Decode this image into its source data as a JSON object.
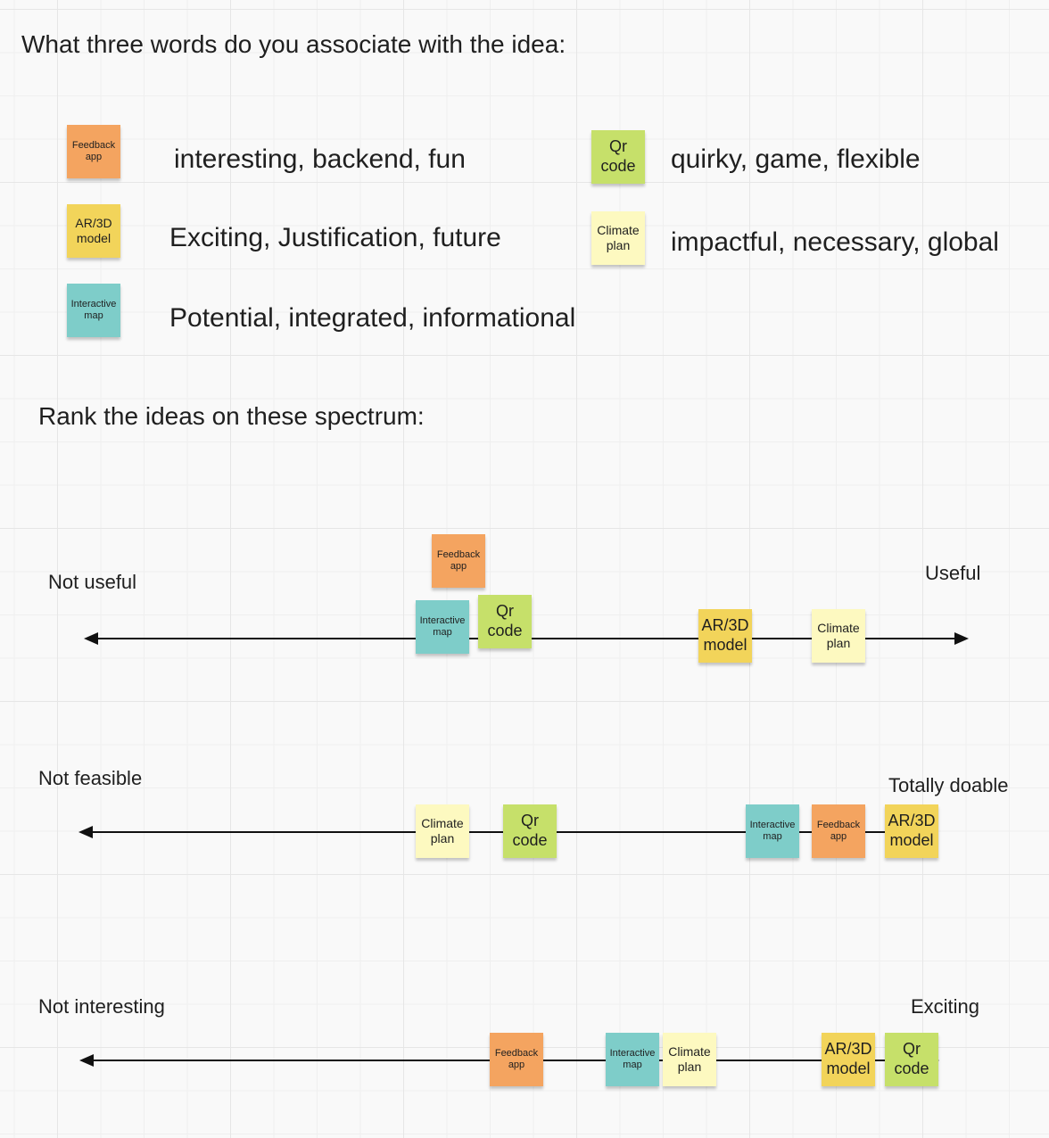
{
  "headings": {
    "association": "What three words do you associate with the idea:",
    "rank": "Rank the ideas on these spectrum:"
  },
  "colors": {
    "orange": "#f4a460",
    "yellow": "#f2d45a",
    "teal": "#7ecdc9",
    "green": "#c6e06a",
    "cream": "#fdf9c0"
  },
  "notes": {
    "feedback": "Feedback app",
    "ar": "AR/3D model",
    "interactive": "Interactive map",
    "qr": "Qr code",
    "climate": "Climate plan"
  },
  "associations": [
    {
      "idea": "Feedback app",
      "words": "interesting, backend, fun"
    },
    {
      "idea": "AR/3D model",
      "words": "Exciting, Justification, future"
    },
    {
      "idea": "Interactive map",
      "words": "Potential, integrated, informational"
    },
    {
      "idea": "Qr code",
      "words": "quirky, game, flexible"
    },
    {
      "idea": "Climate plan",
      "words": "impactful, necessary, global"
    }
  ],
  "spectrums": [
    {
      "left": "Not useful",
      "right": "Useful"
    },
    {
      "left": "Not feasible",
      "right": "Totally doable"
    },
    {
      "left": "Not interesting",
      "right": "Exciting"
    }
  ]
}
